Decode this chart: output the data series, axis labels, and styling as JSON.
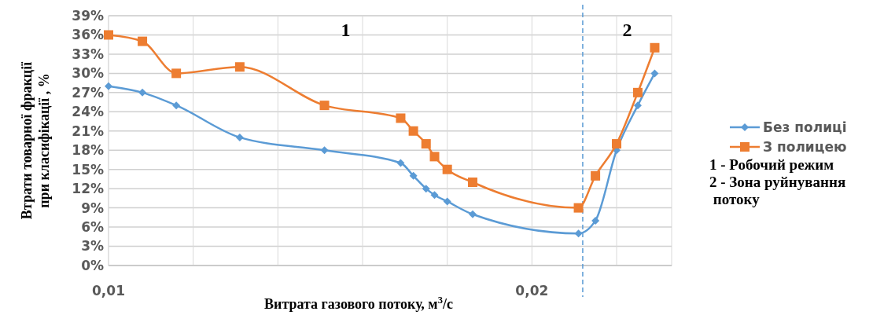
{
  "chart_data": {
    "type": "line",
    "xlabel": "Витрата газового потоку, м$^{3}$/с",
    "ylabel": "Втрати товарної фракції\nпри класифікації , %",
    "x": [
      0.01,
      0.0108,
      0.0116,
      0.0131,
      0.0151,
      0.0169,
      0.0172,
      0.0175,
      0.0177,
      0.018,
      0.0186,
      0.0211,
      0.0215,
      0.022,
      0.0225,
      0.0229
    ],
    "series": [
      {
        "name": "Без полиці",
        "color": "#5b9bd5",
        "marker": "diamond",
        "values": [
          28,
          27,
          25,
          20,
          18,
          16,
          14,
          12,
          11,
          10,
          8,
          5,
          7,
          18,
          25,
          30
        ]
      },
      {
        "name": "З полицею",
        "color": "#ed7d31",
        "marker": "square",
        "values": [
          36,
          35,
          30,
          31,
          25,
          23,
          21,
          19,
          17,
          15,
          13,
          9,
          14,
          19,
          27,
          34
        ]
      }
    ],
    "xlim": [
      0.01,
      0.0233
    ],
    "xticks": [
      {
        "value": 0.01,
        "label": "0,01"
      },
      {
        "value": 0.012,
        "label": null
      },
      {
        "value": 0.014,
        "label": null
      },
      {
        "value": 0.016,
        "label": null
      },
      {
        "value": 0.018,
        "label": null
      },
      {
        "value": 0.02,
        "label": "0,02"
      },
      {
        "value": 0.022,
        "label": null
      }
    ],
    "ylim": [
      0,
      39
    ],
    "yticks": [
      {
        "value": 0,
        "label": "0%"
      },
      {
        "value": 3,
        "label": "3%"
      },
      {
        "value": 6,
        "label": "6%"
      },
      {
        "value": 9,
        "label": "9%"
      },
      {
        "value": 12,
        "label": "12%"
      },
      {
        "value": 15,
        "label": "15%"
      },
      {
        "value": 18,
        "label": "18%"
      },
      {
        "value": 21,
        "label": "21%"
      },
      {
        "value": 24,
        "label": "24%"
      },
      {
        "value": 27,
        "label": "27%"
      },
      {
        "value": 30,
        "label": "30%"
      },
      {
        "value": 33,
        "label": "33%"
      },
      {
        "value": 36,
        "label": "36%"
      },
      {
        "value": 39,
        "label": "39%"
      }
    ],
    "grid": true,
    "legend": "right",
    "ref_lines": [
      {
        "axis": "x",
        "value": 0.0212,
        "color": "#5b9bd5",
        "line_style": "dashed"
      }
    ],
    "annotations": [
      "1",
      "2",
      "1 - Робочий режим",
      "2 - Зона руйнування\n потоку"
    ]
  }
}
